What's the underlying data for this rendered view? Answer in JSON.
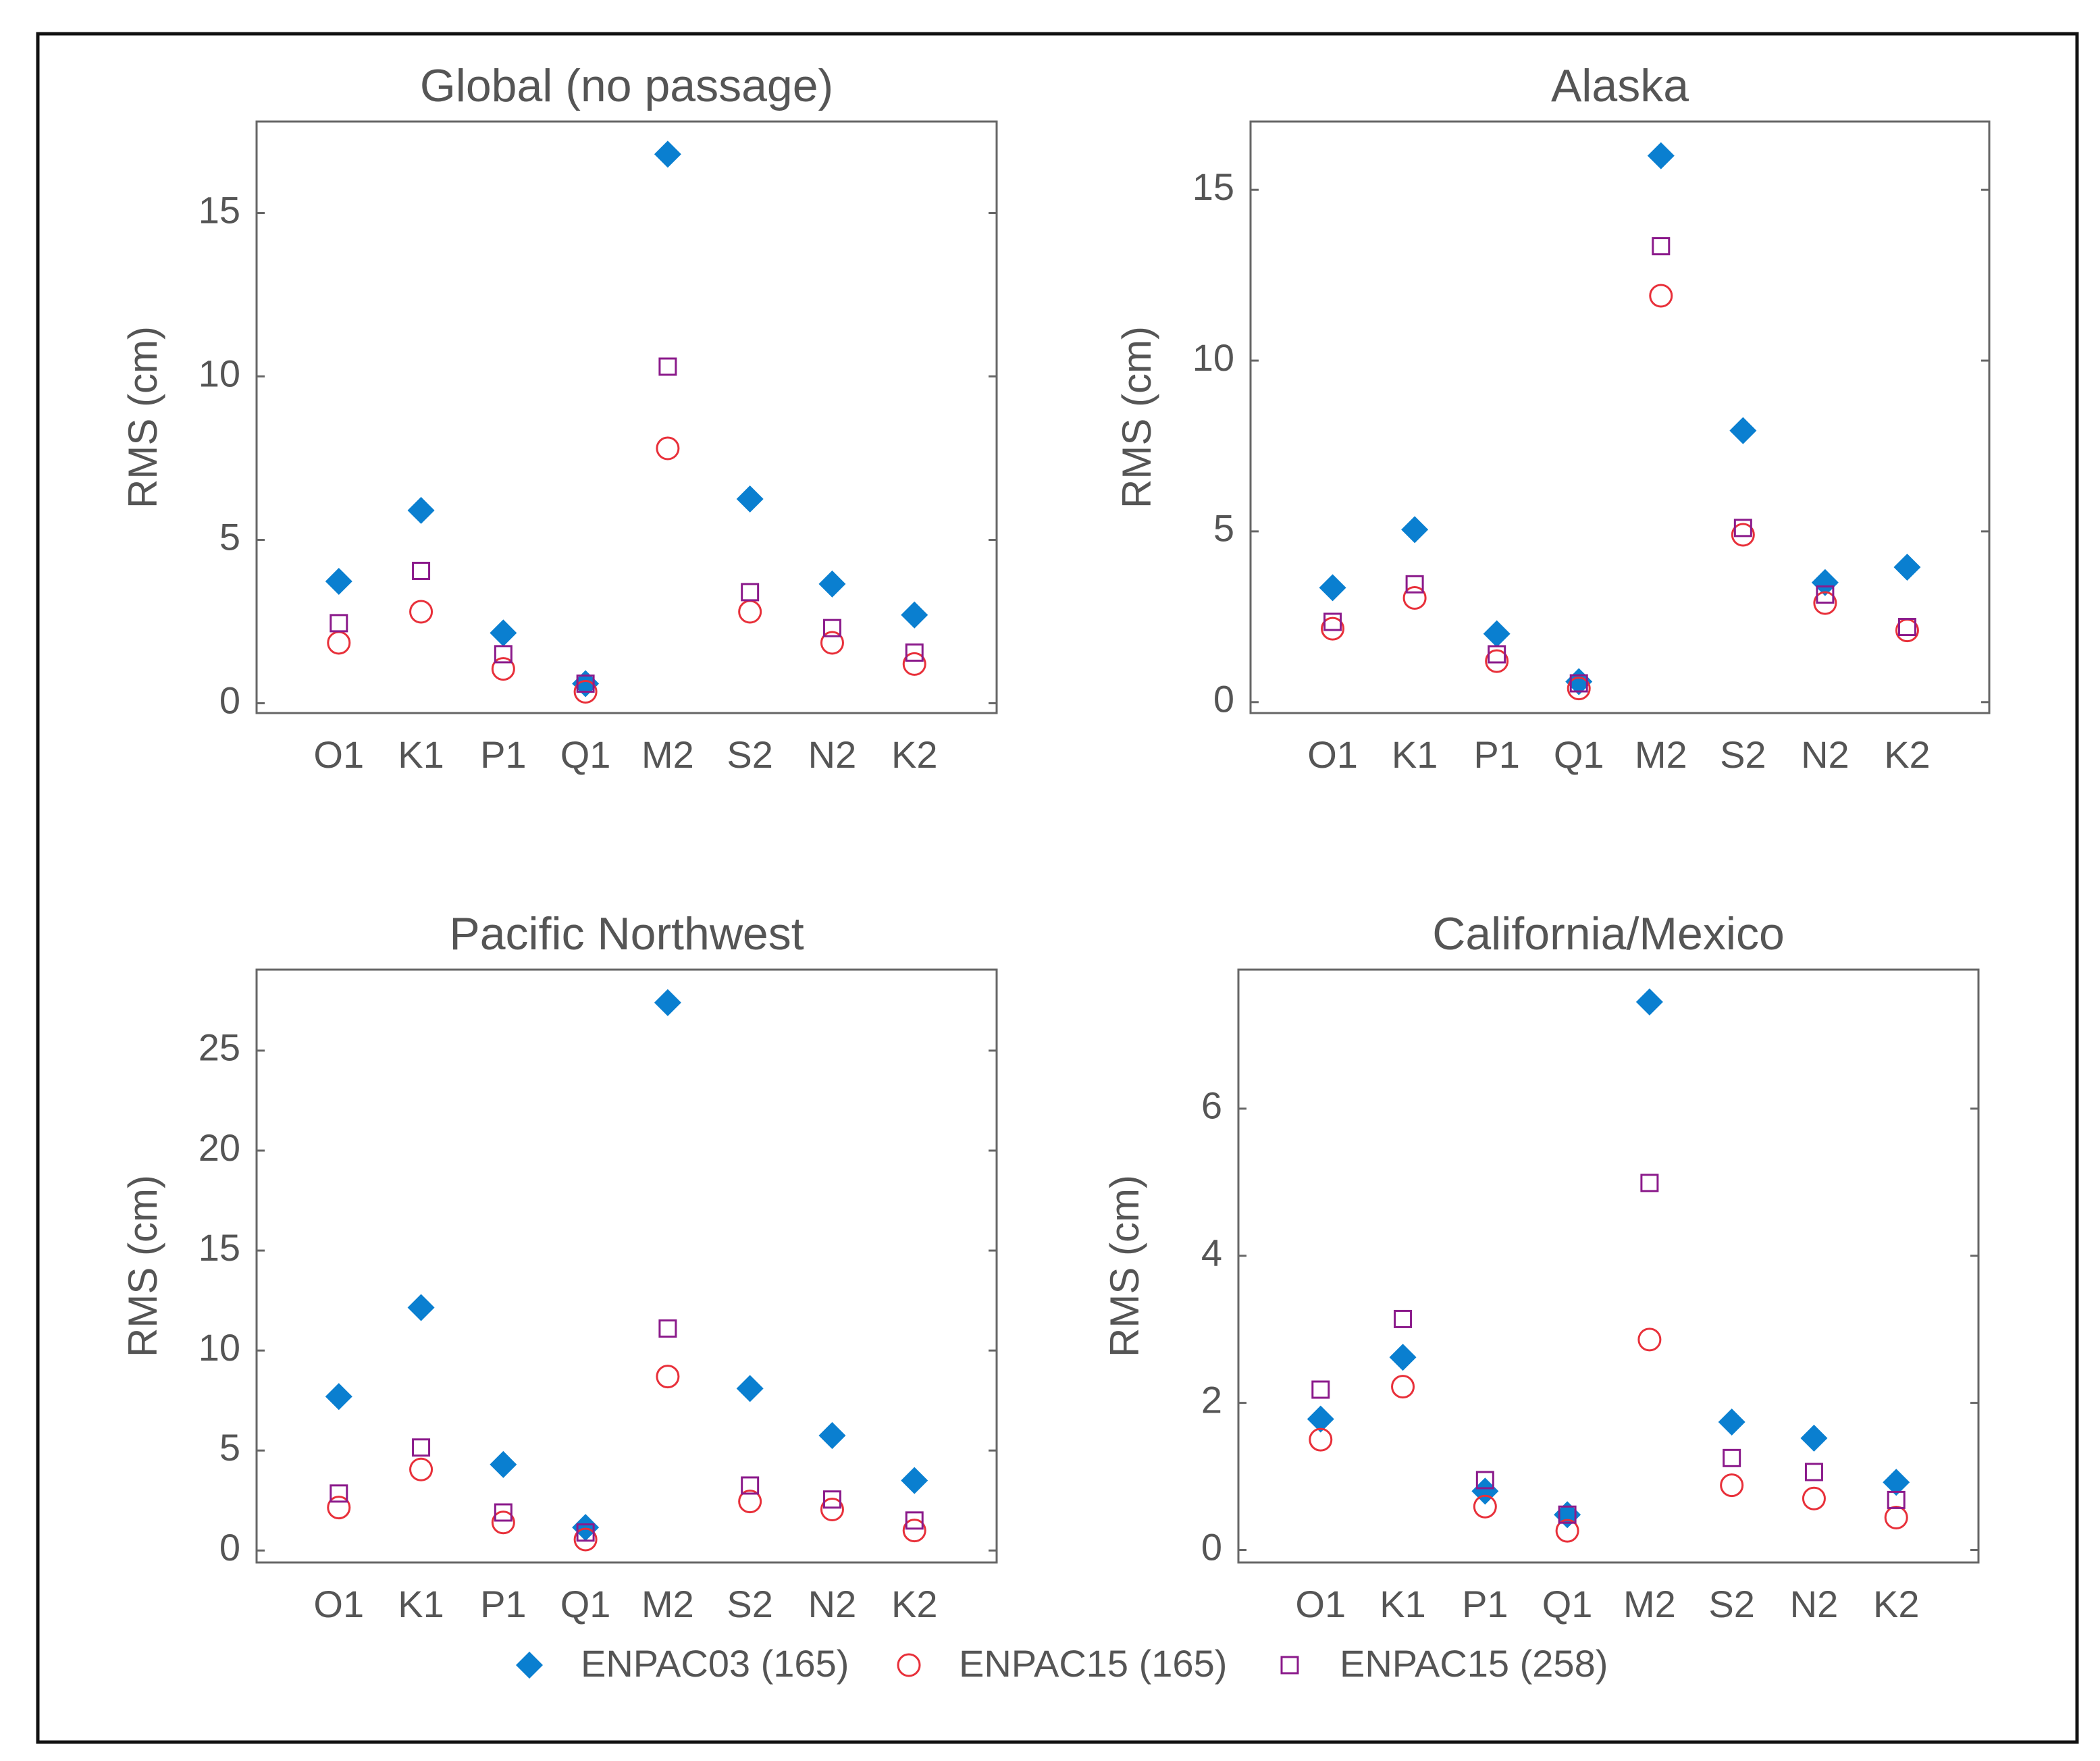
{
  "chart_data": [
    {
      "type": "scatter",
      "title": "Global (no passage)",
      "ylabel": "RMS (cm)",
      "categories": [
        "O1",
        "K1",
        "P1",
        "Q1",
        "M2",
        "S2",
        "N2",
        "K2"
      ],
      "series": [
        {
          "name": "ENPAC03 (165)",
          "color": "#0a7fd0",
          "marker": "diamond",
          "values": [
            3.73,
            5.9,
            2.15,
            0.6,
            16.8,
            6.25,
            3.65,
            2.7
          ]
        },
        {
          "name": "ENPAC15 (165)",
          "color": "#e8303a",
          "marker": "circle",
          "values": [
            1.85,
            2.8,
            1.05,
            0.35,
            7.8,
            2.8,
            1.85,
            1.2
          ]
        },
        {
          "name": "ENPAC15 (258)",
          "color": "#8b1a8b",
          "marker": "square",
          "values": [
            2.45,
            4.05,
            1.5,
            0.6,
            10.3,
            3.4,
            2.3,
            1.55
          ]
        }
      ],
      "ylim": [
        -0.3,
        17.8
      ],
      "yticks": [
        0,
        5,
        10,
        15
      ]
    },
    {
      "type": "scatter",
      "title": "Alaska",
      "ylabel": "RMS (cm)",
      "categories": [
        "O1",
        "K1",
        "P1",
        "Q1",
        "M2",
        "S2",
        "N2",
        "K2"
      ],
      "series": [
        {
          "color": "#0a7fd0",
          "marker": "diamond",
          "values": [
            3.35,
            5.05,
            2.0,
            0.6,
            16.0,
            7.95,
            3.5,
            3.95
          ]
        },
        {
          "color": "#e8303a",
          "marker": "circle",
          "values": [
            2.15,
            3.05,
            1.2,
            0.4,
            11.9,
            4.9,
            2.9,
            2.1
          ]
        },
        {
          "color": "#8b1a8b",
          "marker": "square",
          "values": [
            2.35,
            3.45,
            1.4,
            0.55,
            13.35,
            5.1,
            3.15,
            2.2
          ]
        }
      ],
      "ylim": [
        -0.32,
        17.0
      ],
      "yticks": [
        0,
        5,
        10,
        15
      ]
    },
    {
      "type": "scatter",
      "title": "Pacific Northwest",
      "ylabel": "RMS (cm)",
      "categories": [
        "O1",
        "K1",
        "P1",
        "Q1",
        "M2",
        "S2",
        "N2",
        "K2"
      ],
      "series": [
        {
          "color": "#0a7fd0",
          "marker": "diamond",
          "values": [
            7.7,
            12.15,
            4.3,
            1.15,
            27.4,
            8.1,
            5.75,
            3.5
          ]
        },
        {
          "color": "#e8303a",
          "marker": "circle",
          "values": [
            2.15,
            4.05,
            1.4,
            0.55,
            8.7,
            2.45,
            2.05,
            1.0
          ]
        },
        {
          "color": "#8b1a8b",
          "marker": "square",
          "values": [
            2.85,
            5.15,
            1.9,
            0.9,
            11.1,
            3.25,
            2.55,
            1.5
          ]
        }
      ],
      "ylim": [
        -0.6,
        29.05
      ],
      "yticks": [
        0,
        5,
        10,
        15,
        20,
        25
      ]
    },
    {
      "type": "scatter",
      "title": "California/Mexico",
      "ylabel": "RMS (cm)",
      "categories": [
        "O1",
        "K1",
        "P1",
        "Q1",
        "M2",
        "S2",
        "N2",
        "K2"
      ],
      "series": [
        {
          "color": "#0a7fd0",
          "marker": "diamond",
          "values": [
            1.78,
            2.62,
            0.8,
            0.48,
            7.45,
            1.74,
            1.52,
            0.92
          ]
        },
        {
          "color": "#e8303a",
          "marker": "circle",
          "values": [
            1.5,
            2.22,
            0.59,
            0.26,
            2.86,
            0.88,
            0.7,
            0.44
          ]
        },
        {
          "color": "#8b1a8b",
          "marker": "square",
          "values": [
            2.18,
            3.14,
            0.95,
            0.48,
            4.99,
            1.25,
            1.06,
            0.68
          ]
        }
      ],
      "ylim": [
        -0.17,
        7.89
      ],
      "yticks": [
        0,
        2,
        4,
        6
      ]
    }
  ]
}
